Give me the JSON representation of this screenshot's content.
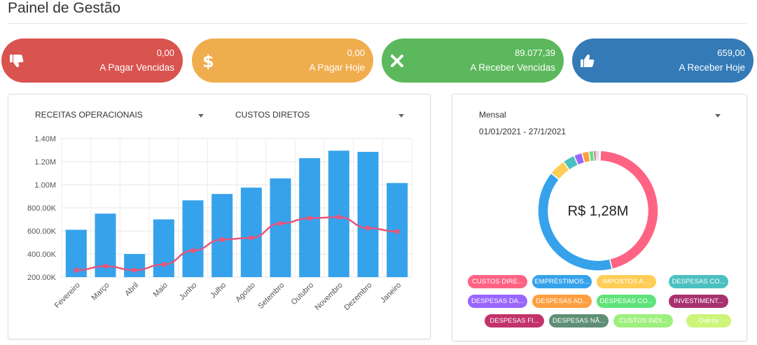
{
  "page": {
    "title": "Painel de Gestão"
  },
  "kpis": [
    {
      "value": "0,00",
      "label": "A Pagar Vencidas",
      "icon": "thumbs-down-icon",
      "color": "#d9534f"
    },
    {
      "value": "0,00",
      "label": "A Pagar Hoje",
      "icon": "dollar-icon",
      "color": "#f0ad4e"
    },
    {
      "value": "89.077,39",
      "label": "A Receber Vencidas",
      "icon": "close-icon",
      "color": "#5cb85c"
    },
    {
      "value": "659,00",
      "label": "A Receber Hoje",
      "icon": "thumbs-up-icon",
      "color": "#337ab7"
    }
  ],
  "bar_panel": {
    "select_bars": "RECEITAS OPERACIONAIS",
    "select_line": "CUSTOS DIRETOS"
  },
  "donut_panel": {
    "period_select": "Mensal",
    "date_range": "01/01/2021 - 27/1/2021",
    "center_label": "R$ 1,28M",
    "legend": [
      {
        "label": "CUSTOS DIRE...",
        "color": "#ff6384"
      },
      {
        "label": "EMPRÉSTIMOS...",
        "color": "#36a2eb"
      },
      {
        "label": "IMPOSTOS A ...",
        "color": "#ffcd56"
      },
      {
        "label": "DESPESAS CO...",
        "color": "#4bc0c0"
      },
      {
        "label": "DESPESAS DA...",
        "color": "#9966ff"
      },
      {
        "label": "DESPESAS AD...",
        "color": "#ff9f40"
      },
      {
        "label": "DESPESAS CO...",
        "color": "#5fe37a"
      },
      {
        "label": "INVESTIMENT...",
        "color": "#a8326e"
      },
      {
        "label": "DESPESAS FI...",
        "color": "#c2336b"
      },
      {
        "label": "DESPESAS NÃ...",
        "color": "#5e8f75"
      },
      {
        "label": "CUSTOS INDI...",
        "color": "#9ef07e"
      },
      {
        "label": "Outros",
        "color": "#cdf57a"
      }
    ]
  },
  "chart_data": [
    {
      "type": "bar",
      "categories": [
        "Fevereiro",
        "Março",
        "Abril",
        "Maio",
        "Junho",
        "Julho",
        "Agosto",
        "Setembro",
        "Outubro",
        "Novembro",
        "Dezembro",
        "Janeiro"
      ],
      "series": [
        {
          "name": "RECEITAS OPERACIONAIS",
          "type": "bar",
          "color": "#36a2eb",
          "values": [
            610000,
            750000,
            400000,
            700000,
            865000,
            920000,
            975000,
            1055000,
            1230000,
            1295000,
            1285000,
            1015000
          ]
        },
        {
          "name": "CUSTOS DIRETOS",
          "type": "line",
          "color": "#e8557c",
          "values": [
            260000,
            295000,
            260000,
            310000,
            430000,
            525000,
            540000,
            665000,
            710000,
            720000,
            625000,
            595000
          ]
        }
      ],
      "yticks": [
        "200.00K",
        "400.00K",
        "600.00K",
        "800.00K",
        "1.00M",
        "1.20M",
        "1.40M"
      ],
      "ylim": [
        200000,
        1400000
      ],
      "grid": true
    },
    {
      "type": "pie",
      "labels": [
        "CUSTOS DIRE...",
        "EMPRÉSTIMOS...",
        "IMPOSTOS A ...",
        "DESPESAS CO...",
        "DESPESAS DA...",
        "DESPESAS AD...",
        "DESPESAS CO...",
        "INVESTIMENT...",
        "DESPESAS FI...",
        "DESPESAS NÃ...",
        "CUSTOS INDI...",
        "Outros"
      ],
      "values": [
        45.6,
        39.5,
        4.5,
        3.2,
        2.2,
        1.9,
        1.3,
        0.6,
        0.4,
        0.4,
        0.2,
        0.2
      ],
      "total_label": "R$ 1,28M"
    }
  ]
}
